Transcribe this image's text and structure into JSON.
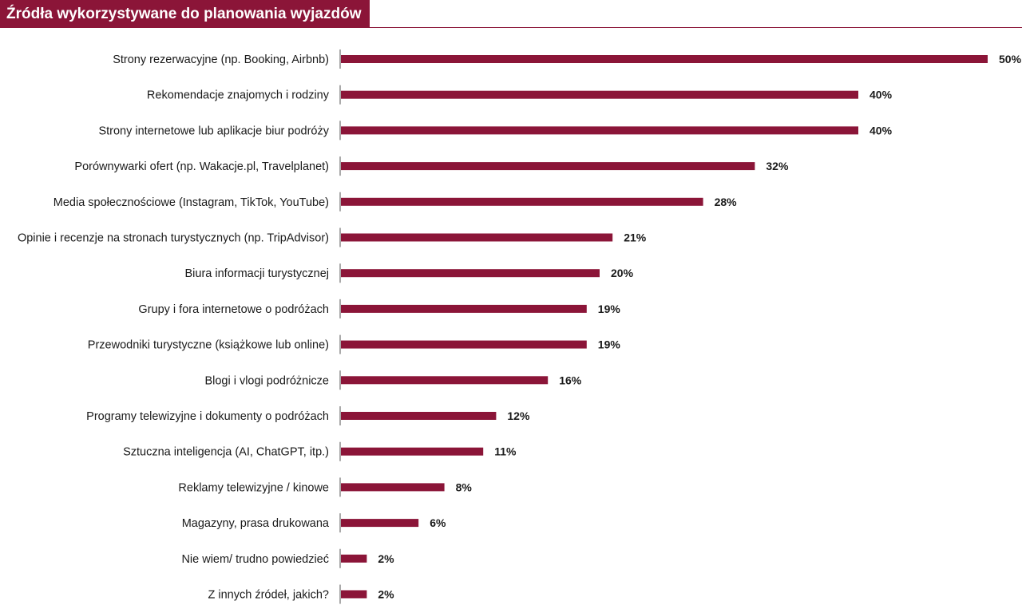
{
  "colors": {
    "accent": "#8b1538",
    "text": "#1a1a1a",
    "axis": "#555555",
    "background": "#ffffff"
  },
  "chart_data": {
    "type": "bar",
    "orientation": "horizontal",
    "title": "Źródła wykorzystywane do planowania wyjazdów",
    "value_suffix": "%",
    "xlim": [
      0,
      50
    ],
    "grid": false,
    "categories": [
      "Strony rezerwacyjne (np. Booking, Airbnb)",
      "Rekomendacje znajomych i rodziny",
      "Strony internetowe lub aplikacje biur podróży",
      "Porównywarki ofert (np. Wakacje.pl, Travelplanet)",
      "Media społecznościowe (Instagram, TikTok, YouTube)",
      "Opinie i recenzje na stronach turystycznych (np. TripAdvisor)",
      "Biura informacji turystycznej",
      "Grupy i fora internetowe o podróżach",
      "Przewodniki turystyczne (książkowe lub online)",
      "Blogi i vlogi podróżnicze",
      "Programy telewizyjne i dokumenty o podróżach",
      "Sztuczna inteligencja (AI, ChatGPT, itp.)",
      "Reklamy telewizyjne / kinowe",
      "Magazyny, prasa drukowana",
      "Nie wiem/ trudno powiedzieć",
      "Z innych źródeł, jakich?"
    ],
    "values": [
      50,
      40,
      40,
      32,
      28,
      21,
      20,
      19,
      19,
      16,
      12,
      11,
      8,
      6,
      2,
      2
    ]
  }
}
